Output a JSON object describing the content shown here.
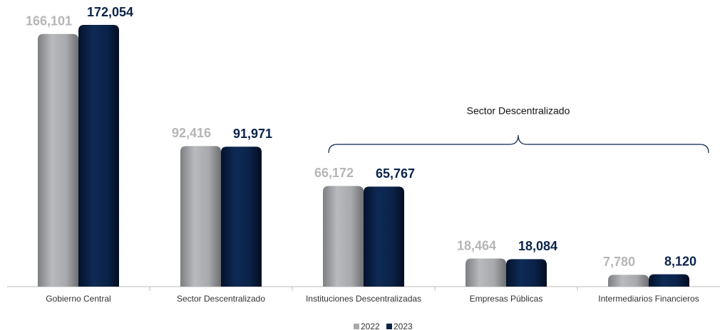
{
  "chart_data": {
    "type": "bar",
    "categories": [
      "Gobierno Central",
      "Sector Descentralizado",
      "Instituciones Descentralizadas",
      "Empresas Públicas",
      "Intermediarios Financieros"
    ],
    "series": [
      {
        "name": "2022",
        "color": "#a7a9ac",
        "values": [
          166101,
          92416,
          66172,
          18464,
          7780
        ],
        "value_labels": [
          "166,101",
          "92,416",
          "66,172",
          "18,464",
          "7,780"
        ]
      },
      {
        "name": "2023",
        "color": "#0b2349",
        "values": [
          172054,
          91971,
          65767,
          18084,
          8120
        ],
        "value_labels": [
          "172,054",
          "91,971",
          "65,767",
          "18,084",
          "8,120"
        ]
      }
    ],
    "annotation": "Sector Descentralizado",
    "legend": "bottom"
  }
}
